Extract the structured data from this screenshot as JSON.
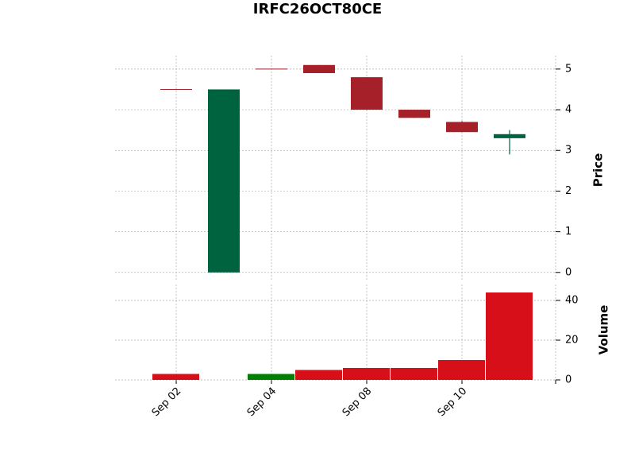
{
  "chart_data": {
    "type": "candlestick",
    "title": "IRFC26OCT80CE",
    "categories": [
      "Sep 02",
      null,
      "Sep 04",
      null,
      "Sep 08",
      null,
      "Sep 10",
      null
    ],
    "open": [
      4.5,
      0,
      5.0,
      5.1,
      4.8,
      4.0,
      3.7,
      3.3
    ],
    "high": [
      4.5,
      4.5,
      5.0,
      5.1,
      4.8,
      4.0,
      3.72,
      3.5
    ],
    "low": [
      4.5,
      0,
      5.0,
      4.9,
      4.0,
      3.8,
      3.45,
      2.9
    ],
    "close": [
      4.5,
      4.5,
      5.0,
      4.9,
      4.0,
      3.8,
      3.45,
      3.4
    ],
    "volume": [
      3,
      0,
      3,
      5,
      6,
      6,
      10,
      44
    ],
    "up_color": "#006340",
    "down_color": "#a52029",
    "volume_up_color": "#008000",
    "volume_down_color": "#d60f18",
    "ylabel": "Price",
    "ylim": [
      -0.18,
      5.33
    ],
    "yticks": [
      0,
      1,
      2,
      3,
      4,
      5
    ],
    "volume_ylabel": "Volume",
    "volume_ylim": [
      0,
      48
    ],
    "volume_yticks": [
      0,
      20,
      40
    ],
    "grid": true
  }
}
